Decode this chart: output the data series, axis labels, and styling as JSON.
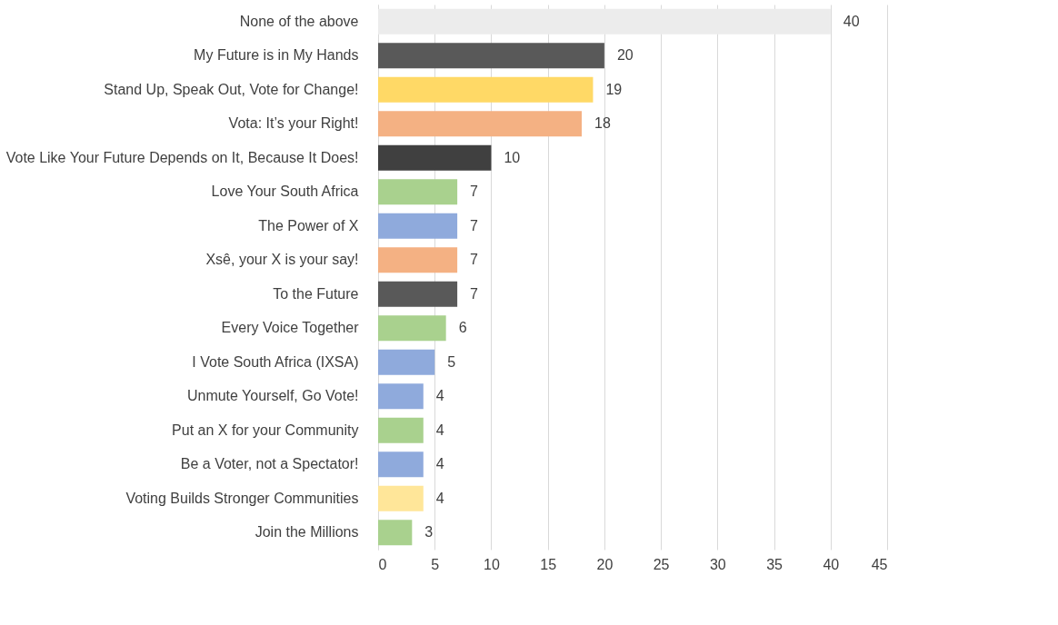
{
  "chart_data": {
    "type": "bar",
    "orientation": "horizontal",
    "categories": [
      "None of the above",
      "My Future is in My Hands",
      "Stand Up, Speak Out, Vote for Change!",
      "Vota: It’s your Right!",
      "Vote Like Your Future Depends on It, Because It Does!",
      "Love Your South Africa",
      "The Power of X",
      "Xsê, your X is your say!",
      "To the Future",
      "Every Voice Together",
      "I Vote South Africa (IXSA)",
      "Unmute Yourself, Go Vote!",
      "Put an X for your Community",
      "Be a Voter, not a Spectator!",
      "Voting Builds Stronger Communities",
      "Join the Millions"
    ],
    "values": [
      40,
      20,
      19,
      18,
      10,
      7,
      7,
      7,
      7,
      6,
      5,
      4,
      4,
      4,
      4,
      3
    ],
    "colors": [
      "#ececec",
      "#595959",
      "#ffd966",
      "#f4b183",
      "#404040",
      "#a9d18e",
      "#8faadc",
      "#f4b183",
      "#595959",
      "#a9d18e",
      "#8faadc",
      "#8faadc",
      "#a9d18e",
      "#8faadc",
      "#ffe699",
      "#a9d18e"
    ],
    "xlim": [
      0,
      45
    ],
    "xticks": [
      0,
      5,
      10,
      15,
      20,
      25,
      30,
      35,
      40,
      45
    ],
    "grid": "x",
    "data_labels": true
  }
}
